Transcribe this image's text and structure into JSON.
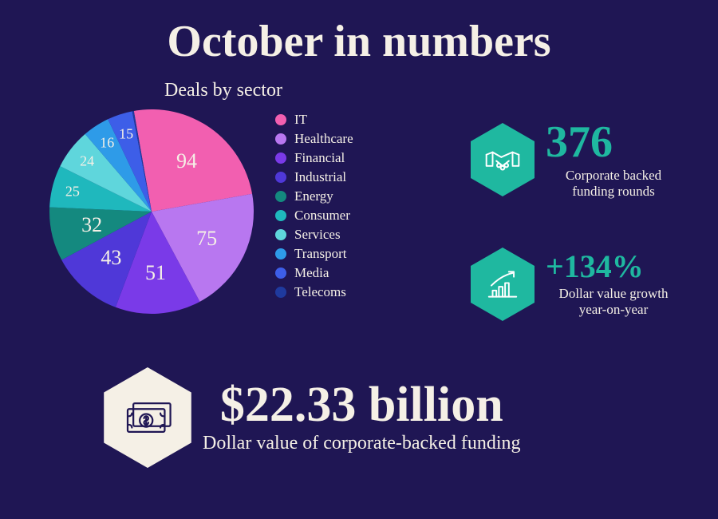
{
  "background_color": "#1f1654",
  "title": {
    "text": "October in numbers",
    "color": "#f5f0e6",
    "fontsize": 56
  },
  "pie": {
    "title": "Deals by sector",
    "title_color": "#f5f0e6",
    "title_fontsize": 24,
    "label_color": "#f5f0e6",
    "label_fontsize_large": 26,
    "label_fontsize_small": 18,
    "small_threshold": 30,
    "start_angle_deg": -10,
    "direction": "clockwise",
    "slices": [
      {
        "label": "IT",
        "value": 94,
        "color": "#f25fb0",
        "show_label": true
      },
      {
        "label": "Healthcare",
        "value": 75,
        "color": "#b877f0",
        "show_label": true
      },
      {
        "label": "Financial",
        "value": 51,
        "color": "#7a3ae8",
        "show_label": true
      },
      {
        "label": "Industrial",
        "value": 43,
        "color": "#4f38d8",
        "show_label": true
      },
      {
        "label": "Energy",
        "value": 32,
        "color": "#14897f",
        "show_label": true
      },
      {
        "label": "Consumer",
        "value": 25,
        "color": "#1fb8bd",
        "show_label": true
      },
      {
        "label": "Services",
        "value": 24,
        "color": "#5fd6dc",
        "show_label": true
      },
      {
        "label": "Transport",
        "value": 16,
        "color": "#2e9be8",
        "show_label": true
      },
      {
        "label": "Media",
        "value": 15,
        "color": "#3d5ee8",
        "show_label": true
      },
      {
        "label": "Telecoms",
        "value": 1,
        "color": "#1f3a9e",
        "show_label": false
      }
    ],
    "legend_fontsize": 17,
    "legend_color": "#f5f0e6"
  },
  "stats": {
    "rounds": {
      "value": "376",
      "caption": "Corporate backed funding rounds",
      "value_color": "#1fb8a0",
      "value_fontsize": 56,
      "caption_color": "#f5f0e6",
      "caption_fontsize": 17,
      "hex_fill": "#1fb8a0",
      "icon_stroke": "#ffffff"
    },
    "growth": {
      "value": "+134%",
      "caption": "Dollar value growth year-on-year",
      "value_color": "#1fb8a0",
      "value_fontsize": 40,
      "caption_color": "#f5f0e6",
      "caption_fontsize": 17,
      "hex_fill": "#1fb8a0",
      "icon_stroke": "#ffffff"
    },
    "total": {
      "value": "$22.33 billion",
      "caption": "Dollar value of corporate-backed funding",
      "value_color": "#f5f0e6",
      "value_fontsize": 62,
      "caption_color": "#f5f0e6",
      "caption_fontsize": 24,
      "hex_fill": "#f5f0e6",
      "icon_stroke": "#1f1654"
    }
  }
}
